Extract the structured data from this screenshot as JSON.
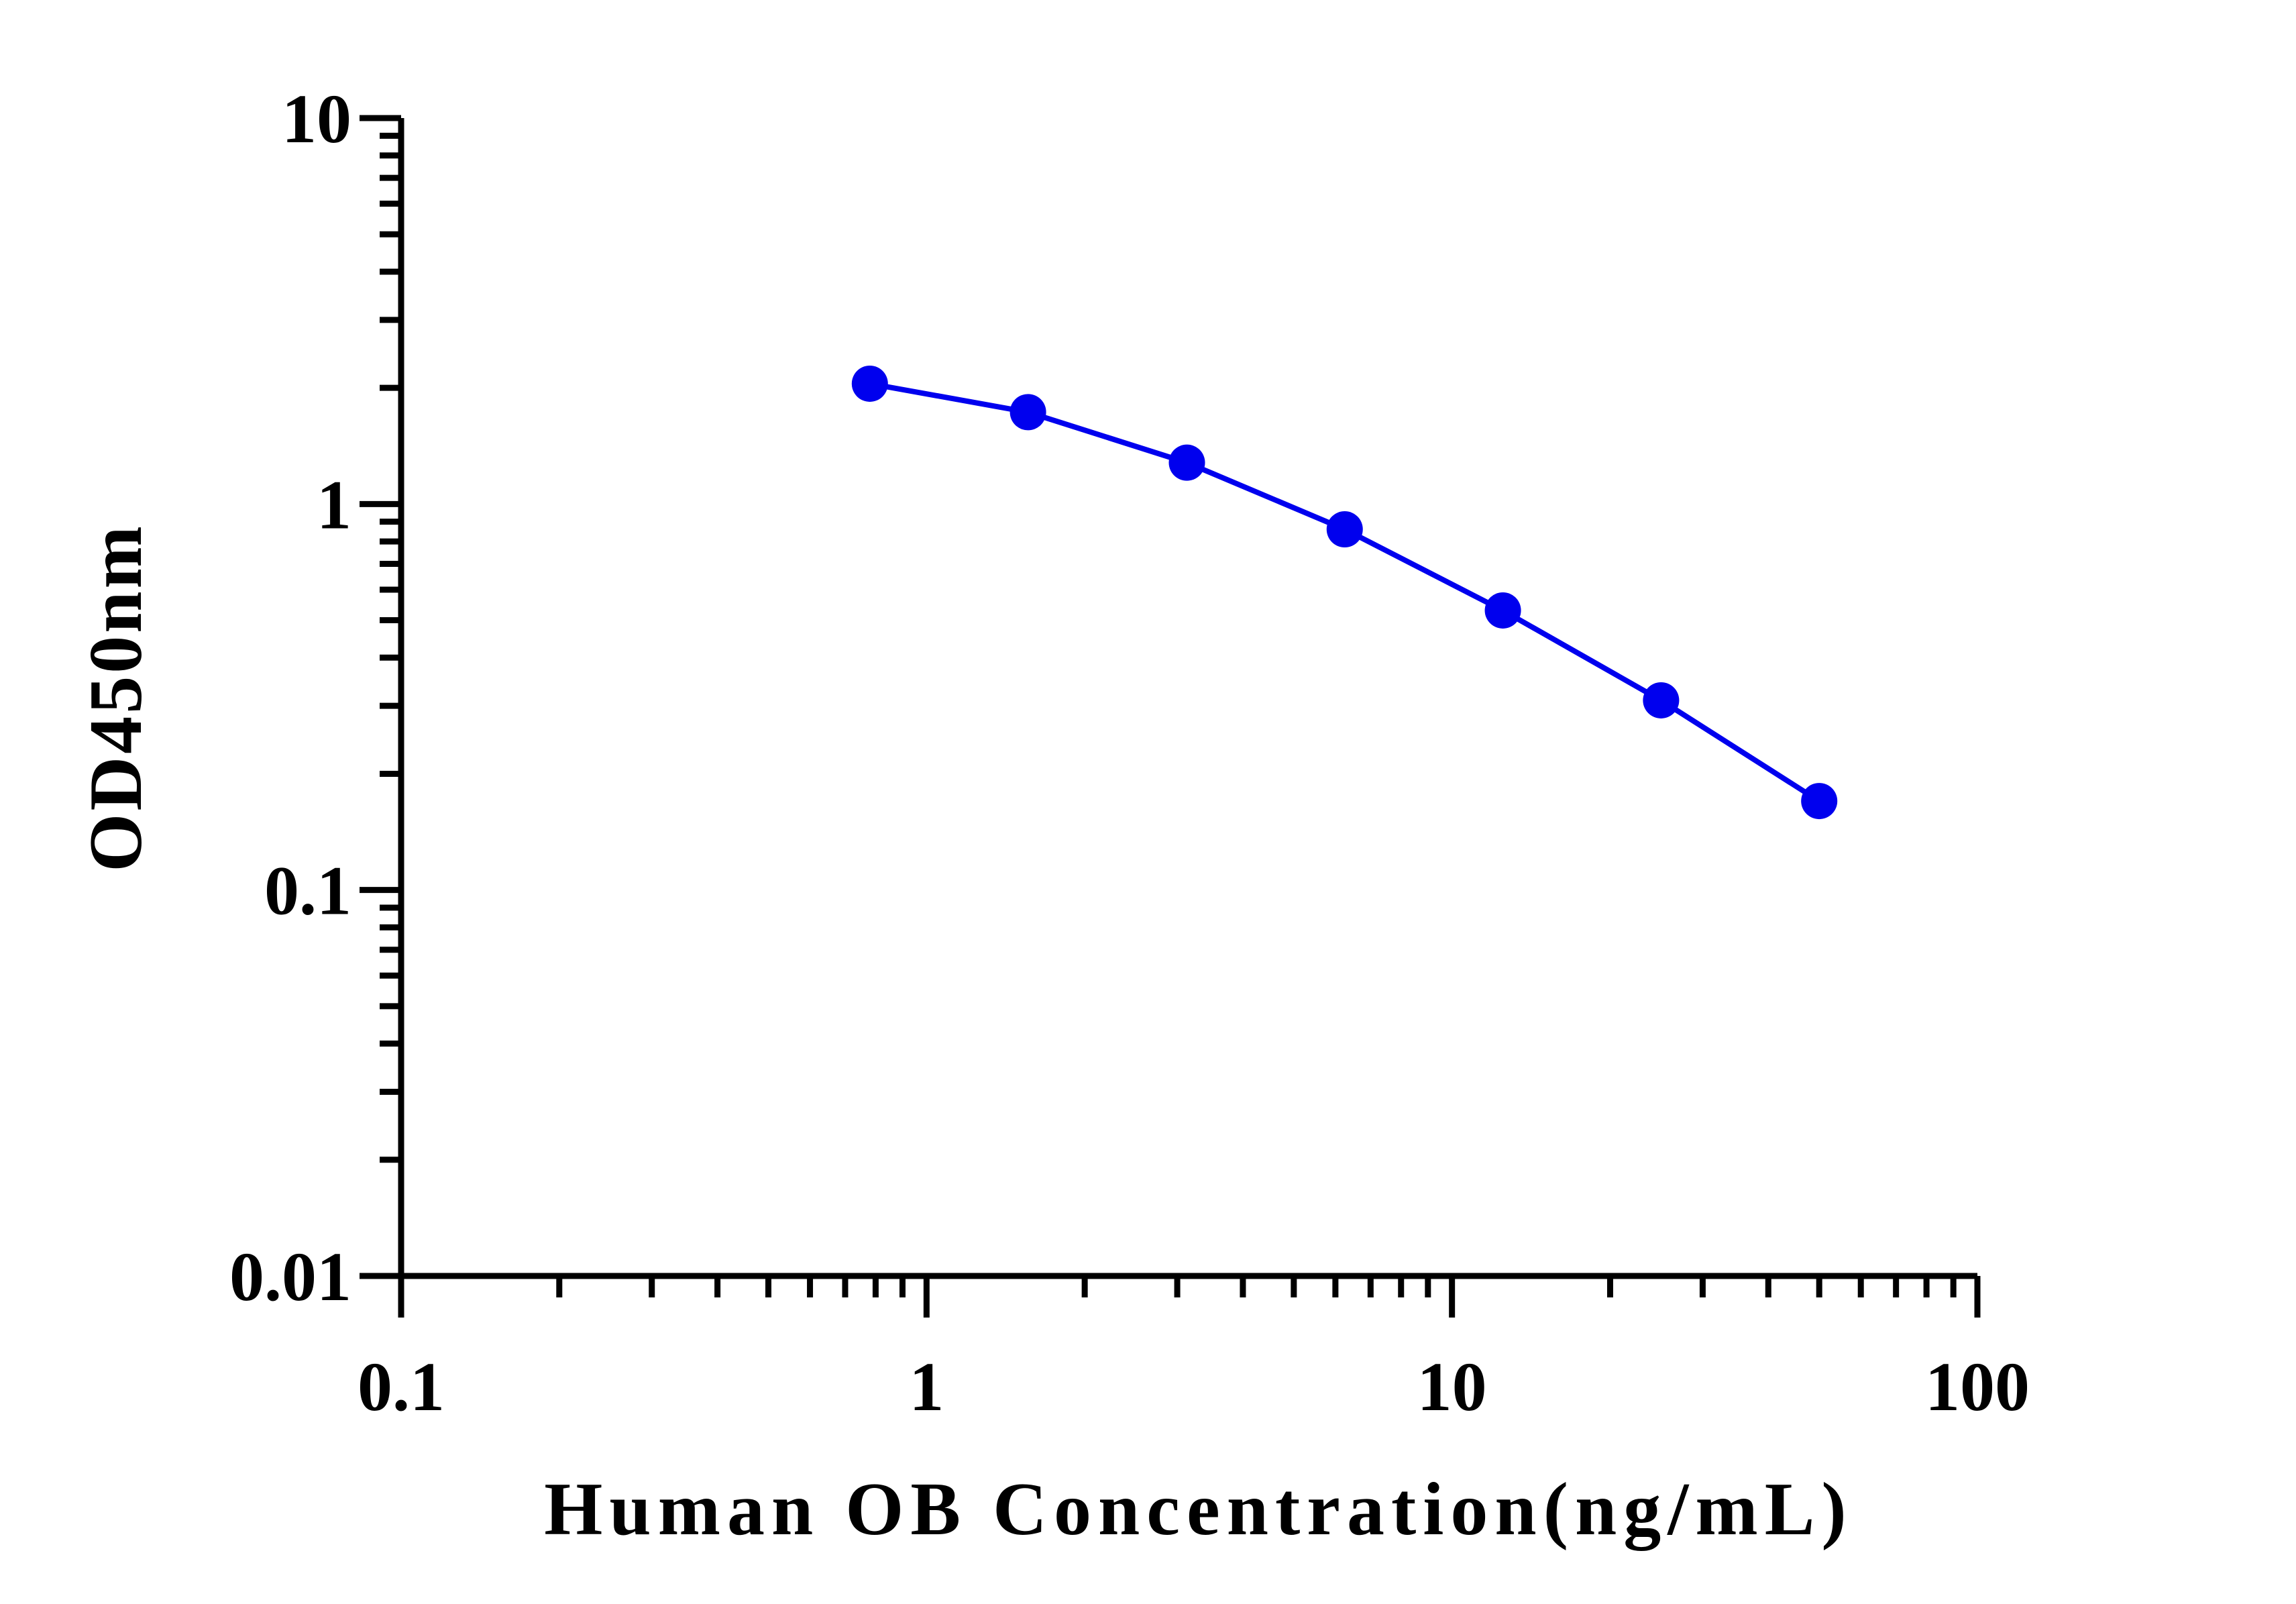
{
  "chart_data": {
    "type": "line",
    "xlabel": "Human OB Concentration(ng/mL)",
    "ylabel": "OD450nm",
    "x_scale": "log",
    "y_scale": "log",
    "xlim": [
      0.1,
      100
    ],
    "ylim": [
      0.01,
      10
    ],
    "x_ticks": [
      "0.1",
      "1",
      "10",
      "100"
    ],
    "y_ticks": [
      "0.01",
      "0.1",
      "1",
      "10"
    ],
    "grid": false,
    "series": [
      {
        "color": "#0000ee",
        "x": [
          0.78,
          1.56,
          3.13,
          6.25,
          12.5,
          25,
          50
        ],
        "y": [
          2.05,
          1.73,
          1.28,
          0.86,
          0.53,
          0.31,
          0.17
        ]
      }
    ]
  }
}
